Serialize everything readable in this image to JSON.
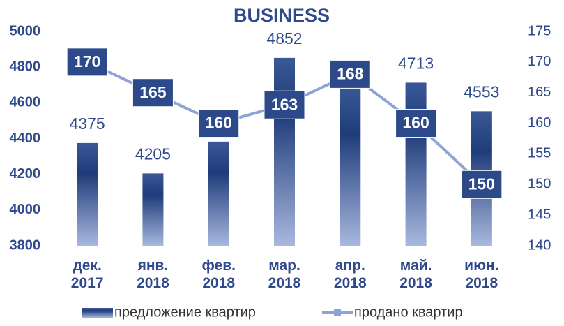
{
  "chart_data": {
    "type": "combo",
    "title": "BUSINESS",
    "categories": [
      "дек.\n2017",
      "янв.\n2018",
      "фев.\n2018",
      "мар.\n2018",
      "апр.\n2018",
      "май.\n2018",
      "июн.\n2018"
    ],
    "series": [
      {
        "name": "предложение квартир",
        "type": "bar",
        "color": "#1f3c7a",
        "values": [
          4375,
          4205,
          4383,
          4852,
          4689,
          4713,
          4553
        ]
      },
      {
        "name": "продано квартир",
        "type": "line",
        "axis": "y2",
        "color": "#8ea4d6",
        "values": [
          170,
          165,
          160,
          163,
          168,
          160,
          150
        ]
      }
    ],
    "ylim": [
      3800,
      5000
    ],
    "yticks": [
      3800,
      4000,
      4200,
      4400,
      4600,
      4800,
      5000
    ],
    "y2lim": [
      140,
      175
    ],
    "y2ticks": [
      140,
      145,
      150,
      155,
      160,
      165,
      170,
      175
    ],
    "legend": "bottom"
  }
}
